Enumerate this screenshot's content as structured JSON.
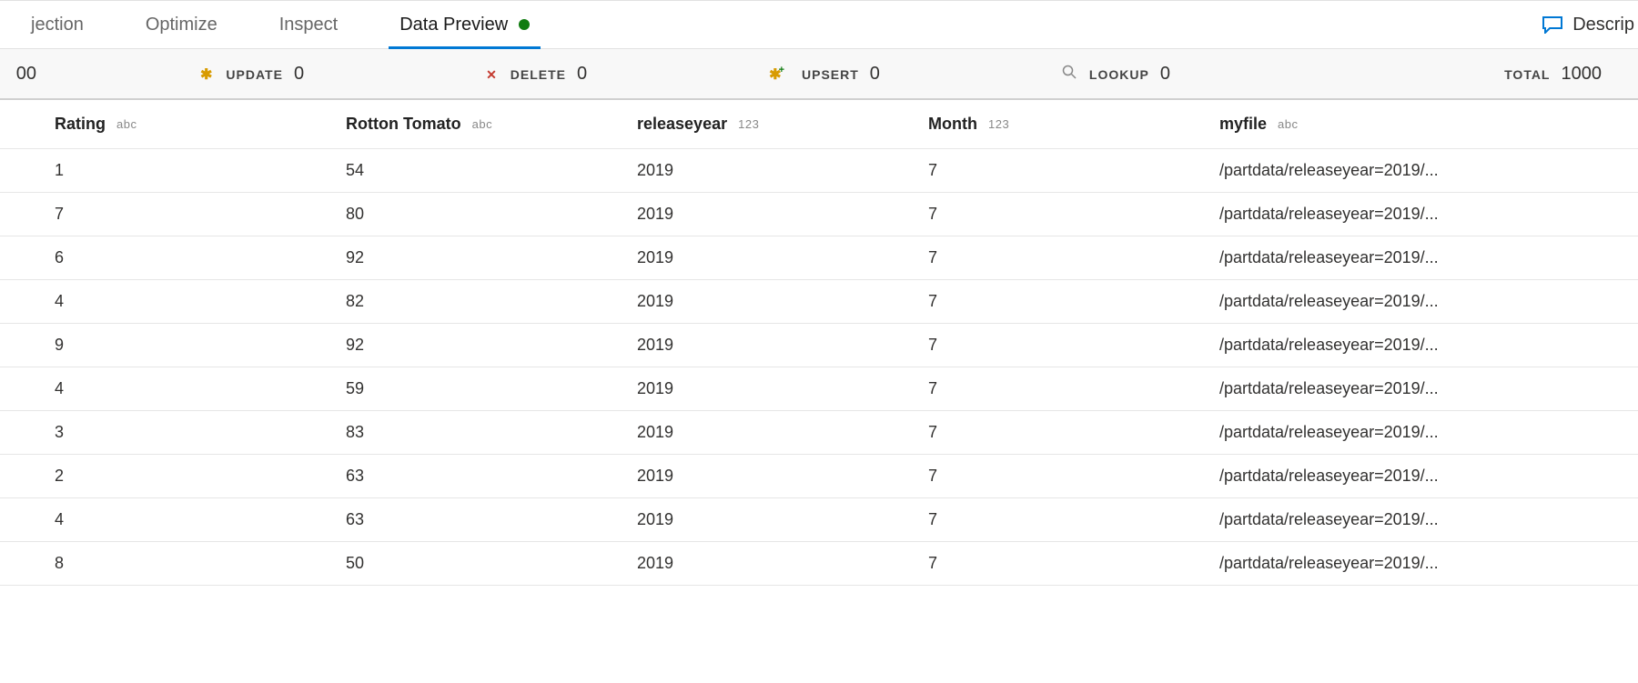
{
  "tabs": [
    {
      "label": "jection"
    },
    {
      "label": "Optimize"
    },
    {
      "label": "Inspect"
    },
    {
      "label": "Data Preview",
      "active": true,
      "indicator": true
    }
  ],
  "describe_button": "Descrip",
  "stats": {
    "insert": {
      "label": "",
      "value": "00"
    },
    "update": {
      "label": "UPDATE",
      "value": "0"
    },
    "delete": {
      "label": "DELETE",
      "value": "0"
    },
    "upsert": {
      "label": "UPSERT",
      "value": "0"
    },
    "lookup": {
      "label": "LOOKUP",
      "value": "0"
    },
    "total": {
      "label": "TOTAL",
      "value": "1000"
    }
  },
  "columns": [
    {
      "name": "Rating",
      "type": "abc"
    },
    {
      "name": "Rotton Tomato",
      "type": "abc"
    },
    {
      "name": "releaseyear",
      "type": "123"
    },
    {
      "name": "Month",
      "type": "123"
    },
    {
      "name": "myfile",
      "type": "abc"
    }
  ],
  "rows": [
    [
      "1",
      "54",
      "2019",
      "7",
      "/partdata/releaseyear=2019/..."
    ],
    [
      "7",
      "80",
      "2019",
      "7",
      "/partdata/releaseyear=2019/..."
    ],
    [
      "6",
      "92",
      "2019",
      "7",
      "/partdata/releaseyear=2019/..."
    ],
    [
      "4",
      "82",
      "2019",
      "7",
      "/partdata/releaseyear=2019/..."
    ],
    [
      "9",
      "92",
      "2019",
      "7",
      "/partdata/releaseyear=2019/..."
    ],
    [
      "4",
      "59",
      "2019",
      "7",
      "/partdata/releaseyear=2019/..."
    ],
    [
      "3",
      "83",
      "2019",
      "7",
      "/partdata/releaseyear=2019/..."
    ],
    [
      "2",
      "63",
      "2019",
      "7",
      "/partdata/releaseyear=2019/..."
    ],
    [
      "4",
      "63",
      "2019",
      "7",
      "/partdata/releaseyear=2019/..."
    ],
    [
      "8",
      "50",
      "2019",
      "7",
      "/partdata/releaseyear=2019/..."
    ]
  ],
  "colors": {
    "accent": "#0078d4",
    "green": "#107c10",
    "amber": "#d89b00",
    "red": "#c43a2f",
    "border": "#e1e1e1",
    "bg_stats": "#f8f8f8"
  }
}
